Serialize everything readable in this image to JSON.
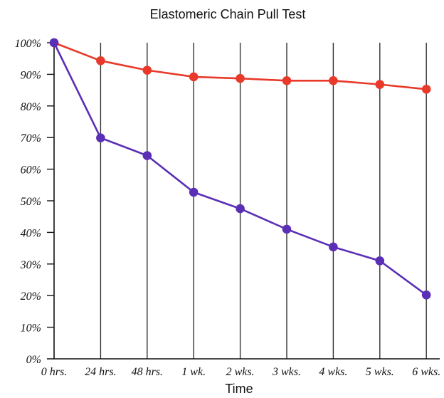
{
  "chart_data": {
    "type": "line",
    "title": "Elastomeric Chain Pull Test",
    "xlabel": "Time",
    "ylabel": "",
    "categories": [
      "0 hrs.",
      "24 hrs.",
      "48 hrs.",
      "1 wk.",
      "2 wks.",
      "3 wks.",
      "4 wks.",
      "5 wks.",
      "6 wks."
    ],
    "y_ticks": [
      "0%",
      "10%",
      "20%",
      "30%",
      "40%",
      "50%",
      "60%",
      "70%",
      "80%",
      "90%",
      "100%"
    ],
    "ylim": [
      0,
      100
    ],
    "grid": "vertical",
    "legend": "none",
    "series": [
      {
        "values": [
          100,
          94.3,
          91.3,
          89.2,
          88.7,
          88.0,
          88.0,
          86.8,
          85.3
        ],
        "color": "#e8392b"
      },
      {
        "values": [
          100,
          69.9,
          64.3,
          52.7,
          47.5,
          41.0,
          35.4,
          31.0,
          20.2
        ],
        "color": "#5b2fb5"
      }
    ]
  }
}
